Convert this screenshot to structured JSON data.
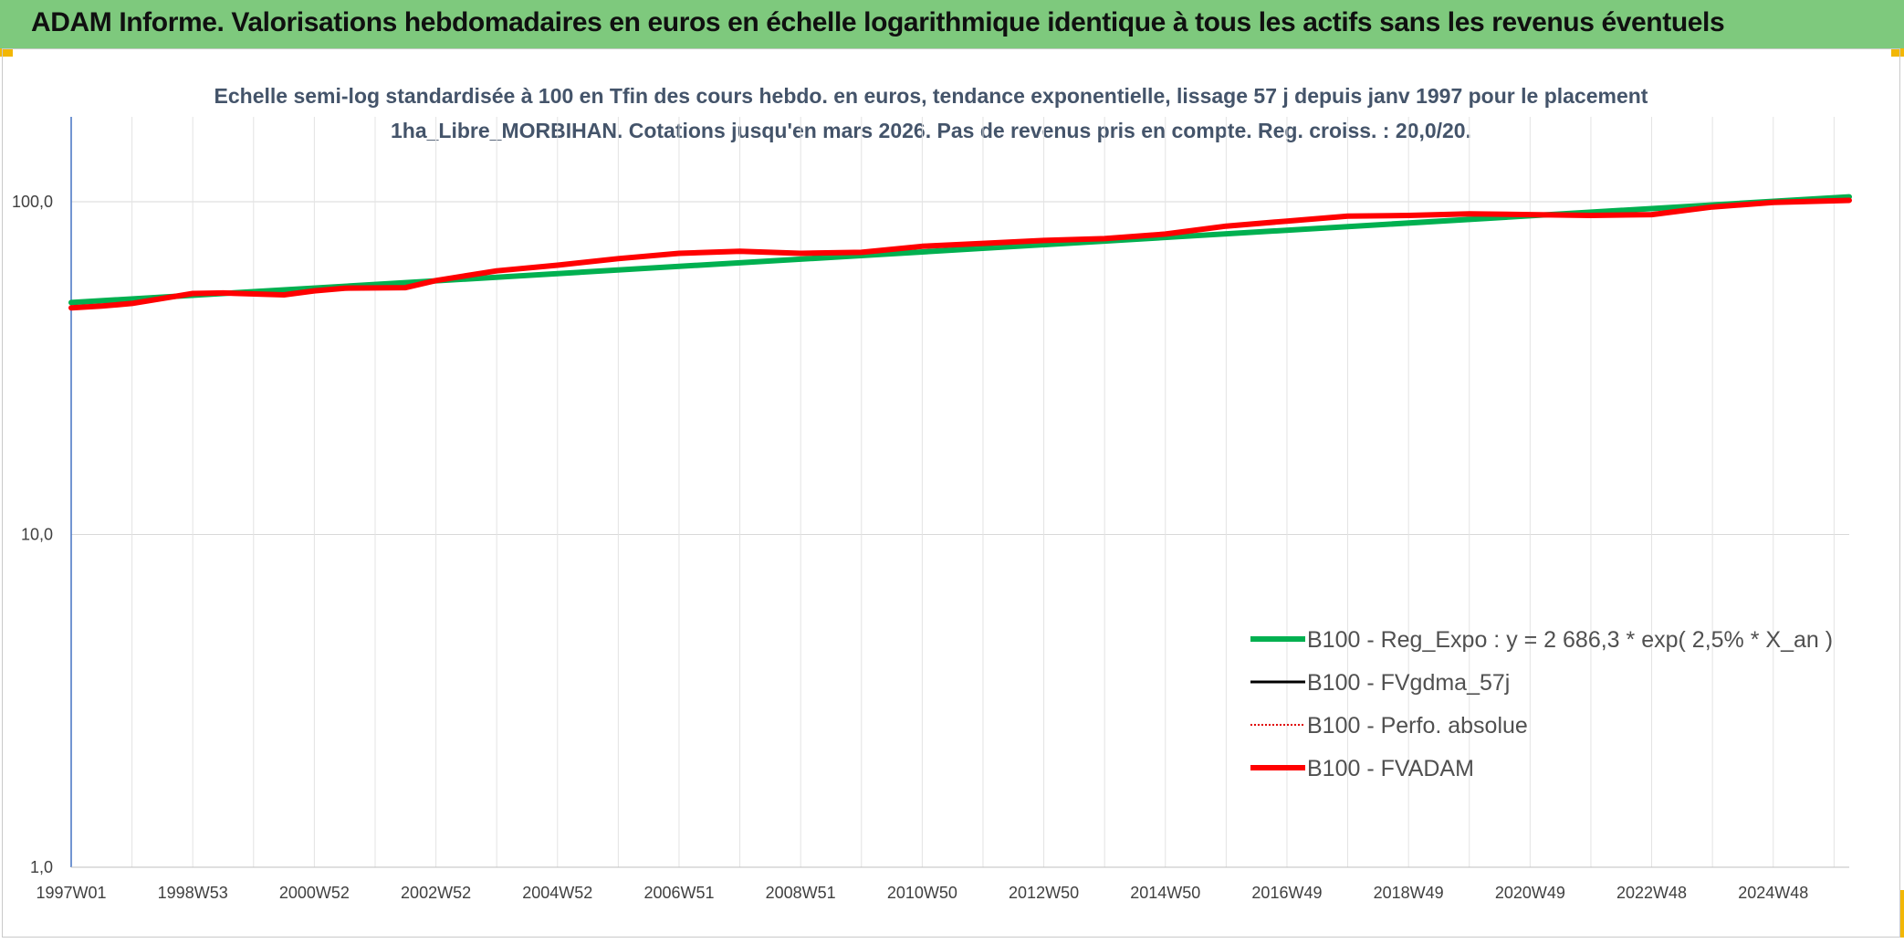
{
  "header": {
    "title": "ADAM Informe. Valorisations hebdomadaires en euros en échelle logarithmique identique à tous les actifs sans les revenus éventuels"
  },
  "chart_data": {
    "type": "line",
    "title": "Echelle semi-log standardisée à 100 en Tfin des cours hebdo. en euros, tendance exponentielle, lissage 57 j depuis janv 1997 pour le placement 1ha_Libre_MORBIHAN. Cotations jusqu'en mars 2026. Pas de revenus pris en compte. Reg. croiss. : 20,0/20.",
    "y_scale": "log",
    "ylim": [
      1,
      180
    ],
    "y_ticks": [
      "1,0",
      "10,0",
      "100,0"
    ],
    "y_tick_values": [
      1,
      10,
      100
    ],
    "x_range": [
      1997.0,
      2026.25
    ],
    "x_ticks": [
      "1997W01",
      "1998W53",
      "2000W52",
      "2002W52",
      "2004W52",
      "2006W51",
      "2008W51",
      "2010W50",
      "2012W50",
      "2014W50",
      "2016W49",
      "2018W49",
      "2020W49",
      "2022W48",
      "2024W48"
    ],
    "x_tick_years": [
      1997.0,
      1999.0,
      2001.0,
      2003.0,
      2005.0,
      2007.0,
      2009.0,
      2011.0,
      2013.0,
      2015.0,
      2017.0,
      2019.0,
      2021.0,
      2023.0,
      2025.0
    ],
    "legend_position": "lower-right",
    "grid": true,
    "series": [
      {
        "name": "B100 - Reg_Expo : y = 2 686,3 * exp( 2,5% *  X_an )",
        "color": "#00b050",
        "style": "solid-thick",
        "x": [
          1997.0,
          2026.25
        ],
        "y": [
          49.8,
          103.5
        ]
      },
      {
        "name": "B100 - FVgdma_57j",
        "color": "#000000",
        "style": "solid-thin",
        "x": [],
        "y": []
      },
      {
        "name": "B100 - Perfo. absolue",
        "color": "#e00000",
        "style": "dotted",
        "x": [],
        "y": []
      },
      {
        "name": "B100 - FVADAM",
        "color": "#ff0000",
        "style": "solid-thick",
        "x": [
          1997.0,
          1997.5,
          1998.0,
          1999.0,
          1999.5,
          2000.5,
          2001.0,
          2001.5,
          2002.5,
          2003.0,
          2004.0,
          2005.0,
          2006.0,
          2007.0,
          2008.0,
          2009.0,
          2010.0,
          2011.0,
          2012.0,
          2013.0,
          2014.0,
          2015.0,
          2016.0,
          2017.0,
          2018.0,
          2019.0,
          2020.0,
          2021.0,
          2022.0,
          2023.0,
          2024.0,
          2025.0,
          2026.25
        ],
        "y": [
          48.0,
          48.6,
          49.5,
          53.0,
          53.2,
          52.5,
          54.0,
          55.0,
          55.2,
          58.0,
          62.0,
          64.5,
          67.5,
          70.0,
          71.0,
          70.0,
          70.5,
          73.5,
          75.0,
          76.5,
          77.5,
          80.0,
          84.5,
          87.5,
          90.5,
          91.0,
          92.0,
          91.5,
          91.0,
          91.5,
          96.5,
          99.5,
          101.0
        ]
      }
    ]
  }
}
